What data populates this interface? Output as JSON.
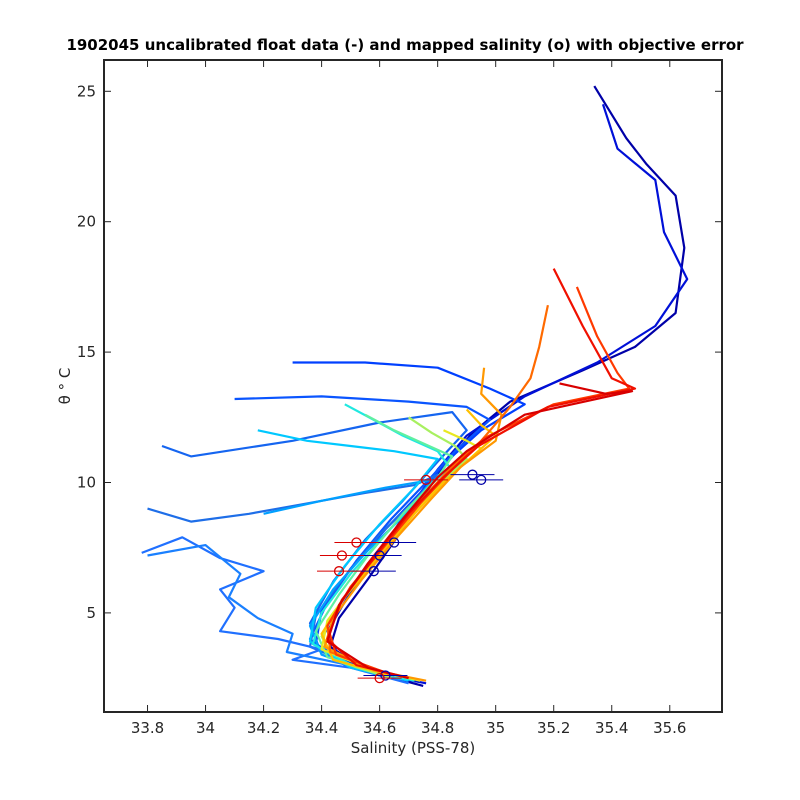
{
  "chart_data": {
    "type": "line",
    "title": "1902045 uncalibrated float data (-) and mapped salinity (o) with objective error",
    "xlabel": "Salinity (PSS-78)",
    "ylabel": "θ ° C",
    "xlim": [
      33.65,
      35.78
    ],
    "ylim": [
      1.2,
      26.2
    ],
    "xticks": [
      33.8,
      34.0,
      34.2,
      34.4,
      34.6,
      34.8,
      35.0,
      35.2,
      35.4,
      35.6
    ],
    "xtick_labels": [
      "33.8",
      "34",
      "34.2",
      "34.4",
      "34.6",
      "34.8",
      "35",
      "35.2",
      "35.4",
      "35.6"
    ],
    "yticks": [
      5,
      10,
      15,
      20,
      25
    ],
    "ytick_labels": [
      "5",
      "10",
      "15",
      "20",
      "25"
    ],
    "grid": false,
    "colormap": "jet (profile index: dark blue = early, red = late)",
    "series": [
      {
        "color": "#0000a8",
        "values": [
          [
            35.34,
            25.2
          ],
          [
            35.45,
            23.2
          ],
          [
            35.52,
            22.2
          ],
          [
            35.62,
            21.0
          ],
          [
            35.65,
            19.0
          ],
          [
            35.62,
            16.5
          ],
          [
            35.48,
            15.2
          ],
          [
            35.3,
            14.3
          ],
          [
            35.05,
            13.1
          ],
          [
            34.92,
            11.9
          ],
          [
            34.82,
            10.6
          ],
          [
            34.74,
            9.3
          ],
          [
            34.66,
            7.9
          ],
          [
            34.56,
            6.3
          ],
          [
            34.46,
            4.8
          ],
          [
            34.43,
            3.7
          ],
          [
            34.55,
            2.8
          ],
          [
            34.75,
            2.2
          ]
        ]
      },
      {
        "color": "#0010d8",
        "values": [
          [
            35.37,
            24.5
          ],
          [
            35.42,
            22.8
          ],
          [
            35.55,
            21.6
          ],
          [
            35.58,
            19.6
          ],
          [
            35.66,
            17.8
          ],
          [
            35.55,
            16.0
          ],
          [
            35.35,
            14.6
          ],
          [
            35.1,
            13.3
          ],
          [
            34.9,
            11.8
          ],
          [
            34.8,
            10.5
          ],
          [
            34.7,
            9.0
          ],
          [
            34.6,
            7.3
          ],
          [
            34.5,
            5.8
          ],
          [
            34.42,
            4.3
          ],
          [
            34.46,
            3.3
          ],
          [
            34.62,
            2.6
          ],
          [
            34.76,
            2.3
          ]
        ]
      },
      {
        "color": "#0040ff",
        "values": [
          [
            34.3,
            14.6
          ],
          [
            34.55,
            14.6
          ],
          [
            34.8,
            14.4
          ],
          [
            34.98,
            13.6
          ],
          [
            35.1,
            13.0
          ],
          [
            34.95,
            12.0
          ],
          [
            34.83,
            10.8
          ],
          [
            34.74,
            9.6
          ],
          [
            34.62,
            8.2
          ],
          [
            34.5,
            6.7
          ],
          [
            34.4,
            5.1
          ],
          [
            34.38,
            3.8
          ],
          [
            34.52,
            2.9
          ],
          [
            34.72,
            2.4
          ]
        ]
      },
      {
        "color": "#0a55ff",
        "values": [
          [
            34.1,
            13.2
          ],
          [
            34.4,
            13.3
          ],
          [
            34.7,
            13.1
          ],
          [
            34.9,
            12.9
          ],
          [
            34.98,
            12.4
          ],
          [
            34.86,
            11.2
          ],
          [
            34.76,
            10.0
          ],
          [
            34.64,
            8.6
          ],
          [
            34.52,
            7.0
          ],
          [
            34.42,
            5.4
          ],
          [
            34.36,
            4.0
          ],
          [
            34.48,
            3.0
          ],
          [
            34.7,
            2.4
          ]
        ]
      },
      {
        "color": "#1565f0",
        "values": [
          [
            33.85,
            11.4
          ],
          [
            33.95,
            11.0
          ],
          [
            34.3,
            11.6
          ],
          [
            34.6,
            12.3
          ],
          [
            34.85,
            12.7
          ],
          [
            34.9,
            12.0
          ],
          [
            34.8,
            10.8
          ],
          [
            34.68,
            9.3
          ],
          [
            34.55,
            7.8
          ],
          [
            34.44,
            6.2
          ],
          [
            34.36,
            4.6
          ],
          [
            34.4,
            3.4
          ],
          [
            34.6,
            2.6
          ]
        ]
      },
      {
        "color": "#1e6ee8",
        "values": [
          [
            33.8,
            9.0
          ],
          [
            33.95,
            8.5
          ],
          [
            34.15,
            8.8
          ],
          [
            34.35,
            9.2
          ],
          [
            34.55,
            9.6
          ],
          [
            34.72,
            9.9
          ],
          [
            34.8,
            10.3
          ],
          [
            34.72,
            9.3
          ],
          [
            34.6,
            8.0
          ],
          [
            34.48,
            6.4
          ],
          [
            34.38,
            4.9
          ],
          [
            34.36,
            3.7
          ],
          [
            34.55,
            2.8
          ]
        ]
      },
      {
        "color": "#2070ff",
        "values": [
          [
            33.78,
            7.3
          ],
          [
            33.92,
            7.9
          ],
          [
            34.05,
            7.1
          ],
          [
            34.2,
            6.6
          ],
          [
            34.05,
            5.9
          ],
          [
            34.1,
            5.2
          ],
          [
            34.05,
            4.3
          ],
          [
            34.25,
            4.0
          ],
          [
            34.4,
            3.6
          ],
          [
            34.3,
            3.2
          ],
          [
            34.5,
            2.9
          ],
          [
            34.7,
            2.3
          ]
        ]
      },
      {
        "color": "#1a80ff",
        "values": [
          [
            33.8,
            7.2
          ],
          [
            34.0,
            7.6
          ],
          [
            34.12,
            6.5
          ],
          [
            34.08,
            5.6
          ],
          [
            34.18,
            4.8
          ],
          [
            34.3,
            4.2
          ],
          [
            34.28,
            3.5
          ],
          [
            34.45,
            3.1
          ],
          [
            34.62,
            2.7
          ]
        ]
      },
      {
        "color": "#00a0ff",
        "values": [
          [
            34.2,
            8.8
          ],
          [
            34.4,
            9.3
          ],
          [
            34.62,
            9.8
          ],
          [
            34.78,
            10.1
          ],
          [
            34.7,
            8.9
          ],
          [
            34.56,
            7.4
          ],
          [
            34.44,
            5.9
          ],
          [
            34.36,
            4.5
          ],
          [
            34.4,
            3.4
          ],
          [
            34.6,
            2.6
          ]
        ]
      },
      {
        "color": "#00c8ff",
        "values": [
          [
            34.18,
            12.0
          ],
          [
            34.35,
            11.6
          ],
          [
            34.5,
            11.4
          ],
          [
            34.65,
            11.2
          ],
          [
            34.8,
            10.9
          ],
          [
            34.72,
            9.8
          ],
          [
            34.6,
            8.4
          ],
          [
            34.48,
            6.8
          ],
          [
            34.38,
            5.2
          ],
          [
            34.36,
            3.9
          ],
          [
            34.5,
            2.9
          ],
          [
            34.7,
            2.4
          ]
        ]
      },
      {
        "color": "#20e8e0",
        "values": [
          [
            34.48,
            13.0
          ],
          [
            34.58,
            12.4
          ],
          [
            34.68,
            11.8
          ],
          [
            34.8,
            11.2
          ],
          [
            34.84,
            10.6
          ],
          [
            34.74,
            9.5
          ],
          [
            34.62,
            8.0
          ],
          [
            34.5,
            6.5
          ],
          [
            34.4,
            5.0
          ],
          [
            34.37,
            3.8
          ],
          [
            34.52,
            2.9
          ],
          [
            34.72,
            2.4
          ]
        ]
      },
      {
        "color": "#60f0a0",
        "values": [
          [
            34.55,
            12.6
          ],
          [
            34.65,
            12.0
          ],
          [
            34.75,
            11.5
          ],
          [
            34.85,
            11.0
          ],
          [
            34.8,
            10.2
          ],
          [
            34.68,
            8.8
          ],
          [
            34.56,
            7.2
          ],
          [
            34.46,
            5.7
          ],
          [
            34.38,
            4.3
          ],
          [
            34.42,
            3.3
          ],
          [
            34.62,
            2.6
          ]
        ]
      },
      {
        "color": "#a8f060",
        "values": [
          [
            34.7,
            12.5
          ],
          [
            34.78,
            11.9
          ],
          [
            34.86,
            11.4
          ],
          [
            34.9,
            10.9
          ],
          [
            34.82,
            10.1
          ],
          [
            34.7,
            8.6
          ],
          [
            34.58,
            7.0
          ],
          [
            34.47,
            5.5
          ],
          [
            34.4,
            4.1
          ],
          [
            34.44,
            3.2
          ],
          [
            34.64,
            2.5
          ]
        ]
      },
      {
        "color": "#e8e820",
        "values": [
          [
            34.82,
            12.0
          ],
          [
            34.9,
            11.6
          ],
          [
            34.95,
            11.3
          ],
          [
            34.88,
            10.6
          ],
          [
            34.76,
            9.4
          ],
          [
            34.64,
            7.8
          ],
          [
            34.52,
            6.2
          ],
          [
            34.42,
            4.7
          ],
          [
            34.4,
            3.6
          ],
          [
            34.58,
            2.8
          ],
          [
            34.74,
            2.4
          ]
        ]
      },
      {
        "color": "#ffc000",
        "values": [
          [
            34.9,
            12.8
          ],
          [
            34.95,
            12.2
          ],
          [
            35.0,
            11.8
          ],
          [
            34.92,
            11.0
          ],
          [
            34.82,
            10.0
          ],
          [
            34.72,
            8.8
          ],
          [
            34.6,
            7.2
          ],
          [
            34.48,
            5.6
          ],
          [
            34.4,
            4.2
          ],
          [
            34.44,
            3.2
          ],
          [
            34.64,
            2.6
          ]
        ]
      },
      {
        "color": "#ff9800",
        "values": [
          [
            34.96,
            14.4
          ],
          [
            34.95,
            13.4
          ],
          [
            35.02,
            12.6
          ],
          [
            35.0,
            11.6
          ],
          [
            34.88,
            10.6
          ],
          [
            34.78,
            9.4
          ],
          [
            34.66,
            7.9
          ],
          [
            34.54,
            6.3
          ],
          [
            34.44,
            4.8
          ],
          [
            34.41,
            3.7
          ],
          [
            34.58,
            2.8
          ],
          [
            34.76,
            2.4
          ]
        ]
      },
      {
        "color": "#ff6a00",
        "values": [
          [
            35.18,
            16.8
          ],
          [
            35.15,
            15.2
          ],
          [
            35.12,
            14.0
          ],
          [
            35.05,
            12.9
          ],
          [
            34.95,
            11.6
          ],
          [
            34.84,
            10.5
          ],
          [
            34.74,
            9.3
          ],
          [
            34.62,
            7.6
          ],
          [
            34.5,
            6.0
          ],
          [
            34.42,
            4.5
          ],
          [
            34.43,
            3.5
          ],
          [
            34.62,
            2.7
          ]
        ]
      },
      {
        "color": "#ff3a00",
        "values": [
          [
            35.28,
            17.5
          ],
          [
            35.35,
            15.6
          ],
          [
            35.42,
            14.2
          ],
          [
            35.46,
            13.6
          ],
          [
            35.2,
            13.0
          ],
          [
            34.96,
            11.7
          ],
          [
            34.85,
            10.5
          ],
          [
            34.74,
            9.2
          ],
          [
            34.62,
            7.6
          ],
          [
            34.5,
            6.0
          ],
          [
            34.42,
            4.5
          ],
          [
            34.45,
            3.4
          ],
          [
            34.65,
            2.6
          ]
        ]
      },
      {
        "color": "#f01000",
        "values": [
          [
            35.2,
            18.2
          ],
          [
            35.3,
            16.0
          ],
          [
            35.4,
            14.0
          ],
          [
            35.48,
            13.6
          ],
          [
            35.18,
            12.9
          ],
          [
            34.94,
            11.4
          ],
          [
            34.82,
            10.2
          ],
          [
            34.7,
            8.8
          ],
          [
            34.58,
            7.1
          ],
          [
            34.47,
            5.5
          ],
          [
            34.42,
            4.0
          ],
          [
            34.52,
            3.0
          ],
          [
            34.7,
            2.5
          ]
        ]
      },
      {
        "color": "#d80000",
        "values": [
          [
            35.22,
            13.8
          ],
          [
            35.38,
            13.4
          ],
          [
            35.47,
            13.5
          ],
          [
            35.1,
            12.6
          ],
          [
            34.9,
            11.2
          ],
          [
            34.8,
            10.2
          ],
          [
            34.68,
            8.6
          ],
          [
            34.56,
            6.9
          ],
          [
            34.46,
            5.3
          ],
          [
            34.42,
            3.9
          ],
          [
            34.56,
            2.9
          ],
          [
            34.7,
            2.5
          ]
        ]
      }
    ],
    "mapped_salinity_points": [
      {
        "color": "#0000a8",
        "x": 34.92,
        "y": 10.3
      },
      {
        "color": "#0000a8",
        "x": 34.95,
        "y": 10.1
      },
      {
        "color": "#0000a8",
        "x": 34.65,
        "y": 7.7
      },
      {
        "color": "#0000a8",
        "x": 34.6,
        "y": 7.2
      },
      {
        "color": "#0000a8",
        "x": 34.58,
        "y": 6.6
      },
      {
        "color": "#0000a8",
        "x": 34.62,
        "y": 2.6
      },
      {
        "color": "#d80000",
        "x": 34.76,
        "y": 10.1
      },
      {
        "color": "#d80000",
        "x": 34.52,
        "y": 7.7
      },
      {
        "color": "#d80000",
        "x": 34.47,
        "y": 7.2
      },
      {
        "color": "#d80000",
        "x": 34.46,
        "y": 6.6
      },
      {
        "color": "#d80000",
        "x": 34.6,
        "y": 2.5
      }
    ]
  }
}
